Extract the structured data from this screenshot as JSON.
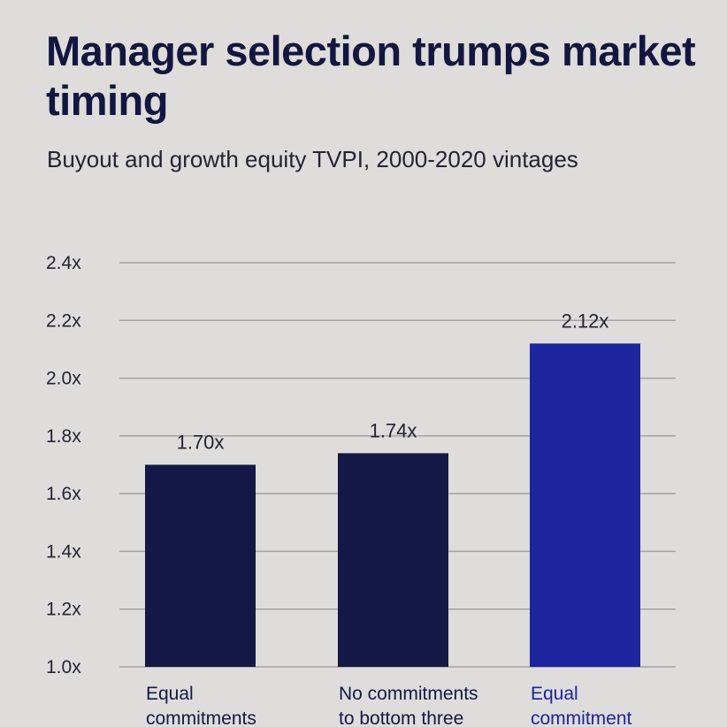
{
  "header": {
    "title": "Manager selection trumps market timing",
    "subtitle": "Buyout and growth equity TVPI, 2000-2020 vintages"
  },
  "colors": {
    "background": "#dedddb",
    "bar_dark": "#131846",
    "bar_highlight": "#1c249e",
    "gridline": "#a3a3a0",
    "text": "#222431"
  },
  "chart_data": {
    "type": "bar",
    "categories": [
      [
        "Equal",
        "commitments"
      ],
      [
        "No commitments",
        "to bottom three"
      ],
      [
        "Equal",
        "commitment"
      ]
    ],
    "values": [
      1.7,
      1.74,
      2.12
    ],
    "value_labels": [
      "1.70x",
      "1.74x",
      "2.12x"
    ],
    "highlight_index": 2,
    "ylim": [
      1.0,
      2.4
    ],
    "yticks": [
      1.0,
      1.2,
      1.4,
      1.6,
      1.8,
      2.0,
      2.2,
      2.4
    ],
    "ytick_labels": [
      "1.0x",
      "1.2x",
      "1.4x",
      "1.6x",
      "1.8x",
      "2.0x",
      "2.2x",
      "2.4x"
    ],
    "grid": true,
    "legend": "none"
  }
}
